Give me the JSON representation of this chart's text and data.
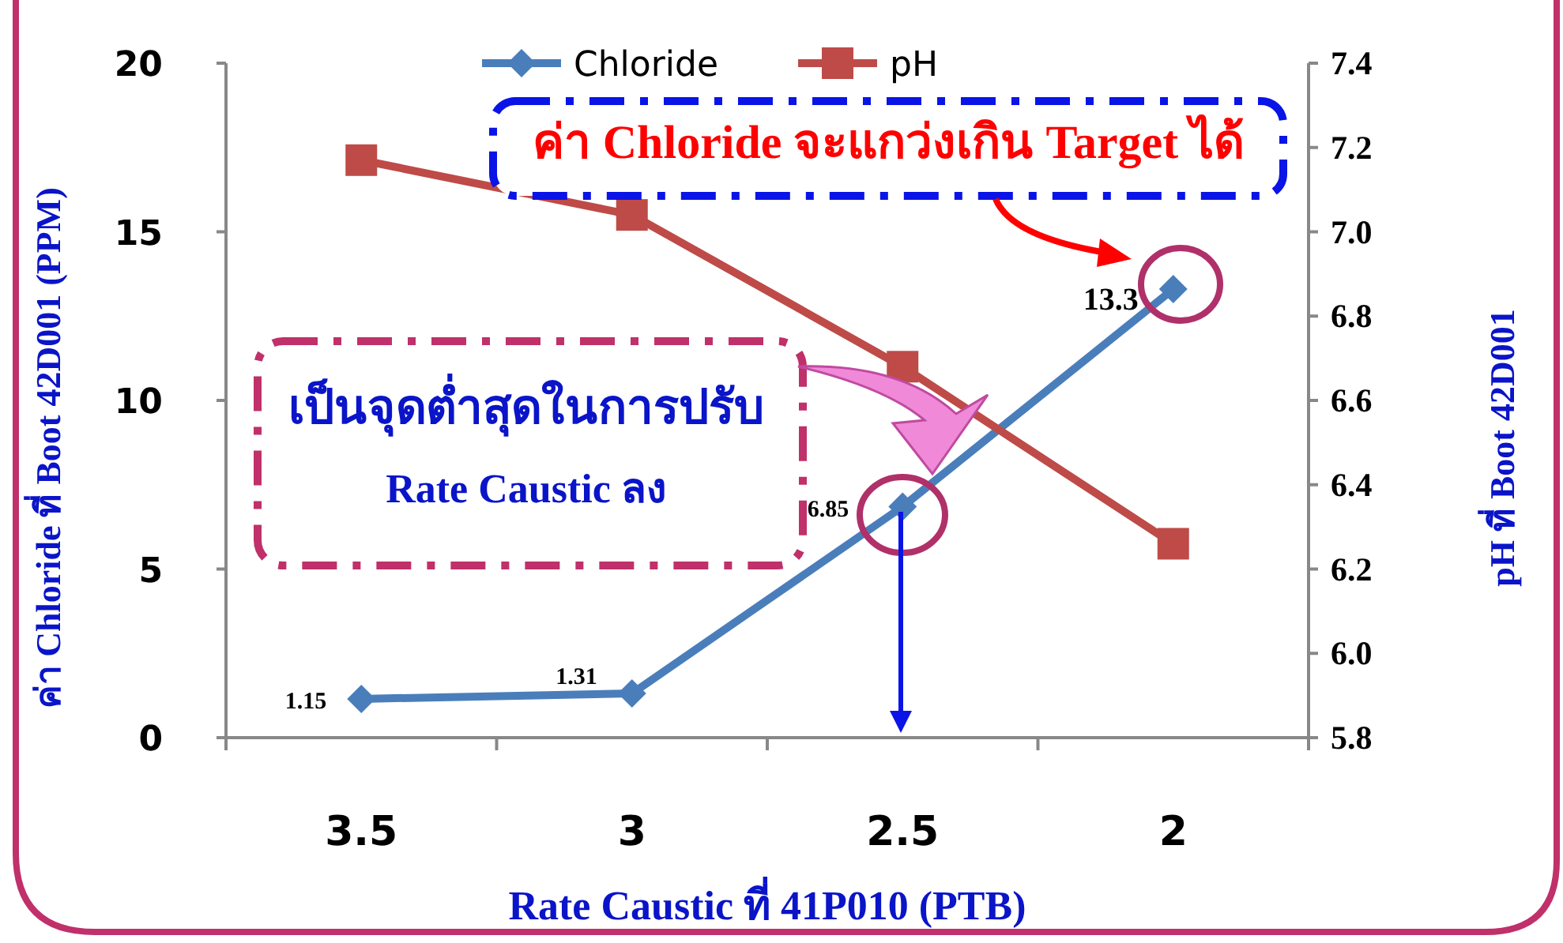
{
  "chart_data": {
    "type": "line",
    "xlabel": "Rate Caustic ที่ 41P010 (PTB)",
    "ylabel": "ค่า Chloride ที่ Boot 42D001 (PPM)",
    "y2label": "pH ที่ Boot 42D001",
    "categories": [
      "3.5",
      "3",
      "2.5",
      "2"
    ],
    "series": [
      {
        "name": "Chloride",
        "color": "#4a7ebb",
        "marker": "diamond",
        "values": [
          1.15,
          1.31,
          6.85,
          13.3
        ],
        "value_labels": [
          "1.15",
          "1.31",
          "6.85",
          "13.3"
        ]
      },
      {
        "name": "pH",
        "color": "#be4b48",
        "marker": "square",
        "axis": "y2",
        "values": [
          7.17,
          7.04,
          6.68,
          6.26
        ]
      }
    ],
    "ylim": [
      0,
      20
    ],
    "yticks": [
      0,
      5,
      10,
      15,
      20
    ],
    "y2lim": [
      5.8,
      7.4
    ],
    "y2ticks": [
      5.8,
      {
        "value": 6,
        "label": "6.0"
      },
      6.2,
      6.4,
      6.6,
      6.8,
      {
        "value": 7,
        "label": "7.0"
      },
      7.2,
      7.4
    ],
    "legend": "top",
    "grid": false,
    "annotations": [
      "ค่า Chloride จะแกว่งเกิน Target ได้",
      "เป็นจุดต่ำสุดในการปรับ\nRate Caustic ลง"
    ]
  }
}
